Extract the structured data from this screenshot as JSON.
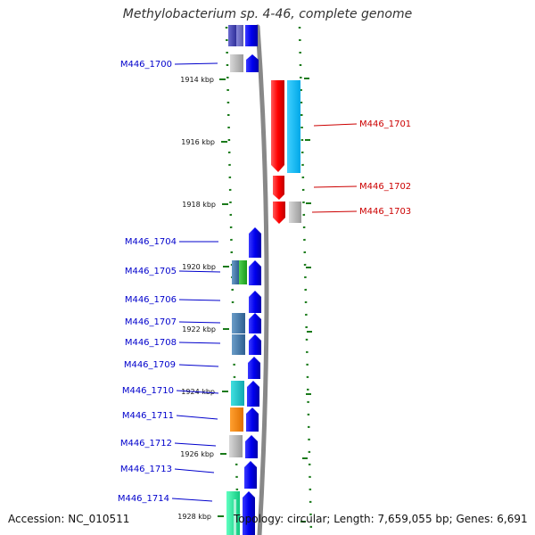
{
  "title": "Methylobacterium sp. 4-46, complete genome",
  "footer": {
    "accession": "Accession: NC_010511",
    "summary": "Topology: circular; Length: 7,659,055 bp; Genes: 6,691"
  },
  "ticks": [
    "1914 kbp",
    "1916 kbp",
    "1918 kbp",
    "1920 kbp",
    "1922 kbp",
    "1924 kbp",
    "1926 kbp",
    "1928 kbp"
  ],
  "genes_left": [
    "M446_1700",
    "M446_1704",
    "M446_1705",
    "M446_1706",
    "M446_1707",
    "M446_1708",
    "M446_1709",
    "M446_1710",
    "M446_1711",
    "M446_1712",
    "M446_1713",
    "M446_1714"
  ],
  "genes_right": [
    "M446_1701",
    "M446_1702",
    "M446_1703"
  ],
  "colors": {
    "forward_gene": "#0000ff",
    "reverse_gene": "#ff0000",
    "left_label": "#0000cc",
    "right_label": "#cc0000",
    "dots": "#1a7a1a",
    "backbone": "#888888"
  }
}
